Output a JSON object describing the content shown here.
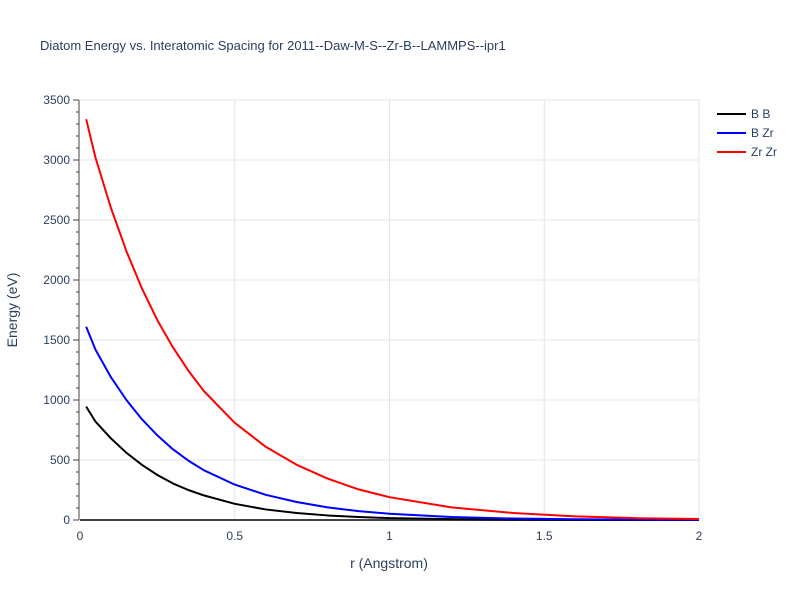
{
  "chart_data": {
    "type": "line",
    "title": "Diatom Energy vs. Interatomic Spacing for 2011--Daw-M-S--Zr-B--LAMMPS--ipr1",
    "xlabel": "r (Angstrom)",
    "ylabel": "Energy (eV)",
    "xlim": [
      0,
      2
    ],
    "ylim": [
      0,
      3500
    ],
    "xticks": [
      "0",
      "0.5",
      "1",
      "1.5",
      "2"
    ],
    "yticks": [
      "0",
      "500",
      "1000",
      "1500",
      "2000",
      "2500",
      "3000",
      "3500"
    ],
    "grid": true,
    "legend_position": "top-right",
    "series": [
      {
        "name": "B B",
        "color": "#000000",
        "x": [
          0.02,
          0.05,
          0.1,
          0.15,
          0.2,
          0.25,
          0.3,
          0.35,
          0.4,
          0.5,
          0.6,
          0.7,
          0.8,
          0.9,
          1.0,
          1.2,
          1.4,
          1.6,
          1.8,
          2.0
        ],
        "y": [
          945,
          820,
          680,
          560,
          460,
          375,
          305,
          250,
          205,
          135,
          88,
          58,
          38,
          25,
          16,
          7,
          3,
          1.2,
          0.5,
          0.2
        ]
      },
      {
        "name": "B Zr",
        "color": "#0000ff",
        "x": [
          0.02,
          0.05,
          0.1,
          0.15,
          0.2,
          0.25,
          0.3,
          0.35,
          0.4,
          0.5,
          0.6,
          0.7,
          0.8,
          0.9,
          1.0,
          1.2,
          1.4,
          1.6,
          1.8,
          2.0
        ],
        "y": [
          1610,
          1420,
          1190,
          1000,
          840,
          705,
          590,
          495,
          415,
          295,
          210,
          150,
          105,
          74,
          52,
          25,
          12,
          6,
          3,
          1.5
        ]
      },
      {
        "name": "Zr Zr",
        "color": "#ff0000",
        "x": [
          0.02,
          0.05,
          0.1,
          0.15,
          0.2,
          0.25,
          0.3,
          0.35,
          0.4,
          0.5,
          0.6,
          0.7,
          0.8,
          0.9,
          1.0,
          1.2,
          1.4,
          1.6,
          1.8,
          2.0
        ],
        "y": [
          3340,
          3020,
          2600,
          2240,
          1930,
          1665,
          1440,
          1245,
          1075,
          810,
          610,
          460,
          345,
          255,
          190,
          105,
          58,
          30,
          15,
          8
        ]
      }
    ]
  }
}
